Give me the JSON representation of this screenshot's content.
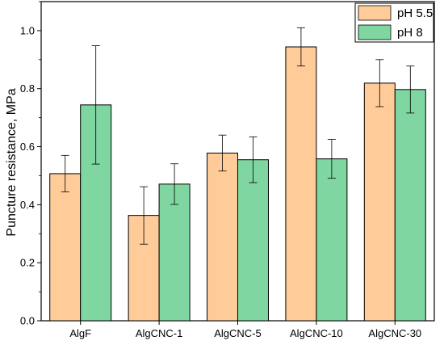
{
  "chart_data": {
    "type": "bar",
    "title": "",
    "xlabel": "",
    "ylabel": "Puncture resistance, MPa",
    "ylim": [
      0.0,
      1.1
    ],
    "yticks": [
      "0.0",
      "0.2",
      "0.4",
      "0.6",
      "0.8",
      "1.0"
    ],
    "categories": [
      "AlgF",
      "AlgCNC-1",
      "AlgCNC-5",
      "AlgCNC-10",
      "AlgCNC-30"
    ],
    "series": [
      {
        "name": "pH 5.5",
        "color": "#FFCC99",
        "values": [
          0.507,
          0.363,
          0.578,
          0.944,
          0.819
        ],
        "errors": [
          0.063,
          0.099,
          0.062,
          0.066,
          0.081
        ]
      },
      {
        "name": "pH 8",
        "color": "#7FD6A0",
        "values": [
          0.744,
          0.471,
          0.555,
          0.558,
          0.797
        ],
        "errors": [
          0.204,
          0.07,
          0.079,
          0.067,
          0.081
        ]
      }
    ],
    "legend_position": "top-right",
    "grid": false
  }
}
